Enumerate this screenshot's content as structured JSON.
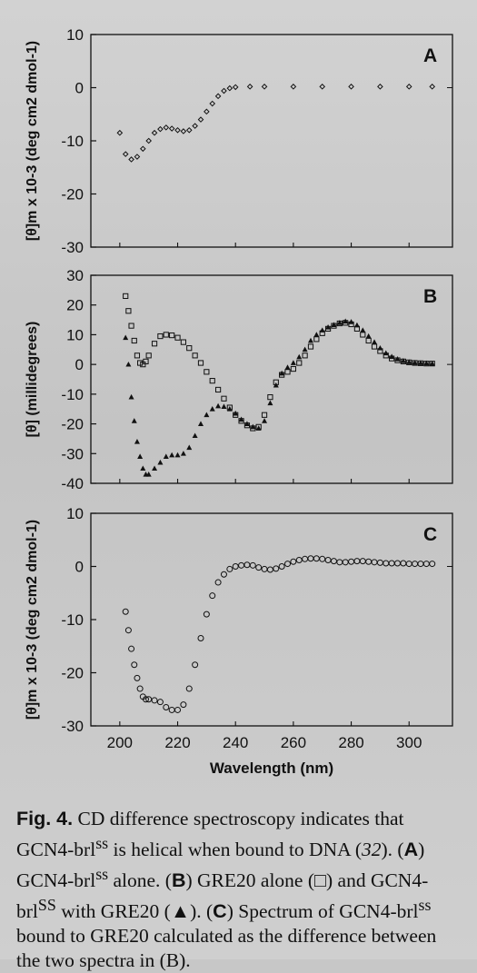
{
  "caption": {
    "fig_label": "Fig. 4.",
    "text": "CD difference spectroscopy indicates that GCN4-brl",
    "sup1": "ss",
    "t2": " is helical when bound to DNA (",
    "ref": "32",
    "t3": "). (",
    "A": "A",
    "t4": ") GCN4-brl",
    "sup2": "ss",
    "t5": " alone. (",
    "B": "B",
    "t6": ") GRE20 alone (□) and GCN4-brl",
    "sup3": "SS",
    "t7": " with GRE20 (▲). (",
    "C": "C",
    "t8": ") Spectrum of GCN4-brl",
    "sup4": "ss",
    "t9": " bound to GRE20 calculated as the difference between the two spectra in (B)."
  },
  "chart_data": [
    {
      "type": "scatter",
      "panel_label": "A",
      "ylabel": "[θ]m x 10-3 (deg cm2 dmol-1)",
      "ylim": [
        -30,
        10
      ],
      "xlim": [
        190,
        315
      ],
      "yticks": [
        "10",
        "0",
        "-10",
        "-20",
        "-30"
      ],
      "series": [
        {
          "marker": "diamond-open",
          "x": [
            200,
            202,
            204,
            206,
            208,
            210,
            212,
            214,
            216,
            218,
            220,
            222,
            224,
            226,
            228,
            230,
            232,
            234,
            236,
            238,
            240,
            245,
            250,
            260,
            270,
            280,
            290,
            300,
            308
          ],
          "y": [
            -8.5,
            -12.5,
            -13.5,
            -13,
            -11.5,
            -10,
            -8.5,
            -7.8,
            -7.5,
            -7.7,
            -8,
            -8.2,
            -8,
            -7.2,
            -6,
            -4.5,
            -3,
            -1.6,
            -0.6,
            -0.1,
            0.1,
            0.2,
            0.2,
            0.2,
            0.2,
            0.2,
            0.2,
            0.2,
            0.2
          ]
        }
      ]
    },
    {
      "type": "scatter",
      "panel_label": "B",
      "ylabel": "[θ] (millidegrees)",
      "ylim": [
        -40,
        30
      ],
      "xlim": [
        190,
        315
      ],
      "yticks": [
        "30",
        "20",
        "10",
        "0",
        "-10",
        "-20",
        "-30",
        "-40"
      ],
      "series": [
        {
          "marker": "square-open",
          "x": [
            202,
            203,
            204,
            205,
            206,
            207,
            208,
            209,
            210,
            212,
            214,
            216,
            218,
            220,
            222,
            224,
            226,
            228,
            230,
            232,
            234,
            236,
            238,
            240,
            242,
            244,
            246,
            248,
            250,
            252,
            254,
            256,
            258,
            260,
            262,
            264,
            266,
            268,
            270,
            272,
            274,
            276,
            278,
            280,
            282,
            284,
            286,
            288,
            290,
            292,
            294,
            296,
            298,
            300,
            302,
            304,
            306,
            308
          ],
          "y": [
            23,
            18,
            13,
            8,
            3,
            0.5,
            0,
            1,
            3,
            7,
            9.5,
            10,
            9.8,
            9,
            7.5,
            5.5,
            3,
            0.5,
            -2.5,
            -5.5,
            -8.5,
            -11.5,
            -14.5,
            -17,
            -19,
            -20.5,
            -21.5,
            -21,
            -17,
            -11,
            -6,
            -3.5,
            -2.5,
            -1.5,
            0.5,
            3,
            6,
            8.5,
            10.5,
            12,
            13,
            13.8,
            14,
            13.5,
            12,
            10,
            8,
            6,
            4.5,
            3,
            2,
            1.4,
            1,
            0.7,
            0.5,
            0.4,
            0.3,
            0.3
          ]
        },
        {
          "marker": "triangle-filled",
          "x": [
            202,
            203,
            204,
            205,
            206,
            207,
            208,
            209,
            210,
            212,
            214,
            216,
            218,
            220,
            222,
            224,
            226,
            228,
            230,
            232,
            234,
            236,
            238,
            240,
            242,
            244,
            246,
            248,
            250,
            252,
            254,
            256,
            258,
            260,
            262,
            264,
            266,
            268,
            270,
            272,
            274,
            276,
            278,
            280,
            282,
            284,
            286,
            288,
            290,
            292,
            294,
            296,
            298,
            300,
            302,
            304,
            306,
            308
          ],
          "y": [
            9,
            0,
            -11,
            -19,
            -26,
            -31,
            -35,
            -37,
            -37,
            -35,
            -33,
            -31,
            -30.5,
            -30.5,
            -30,
            -28,
            -24,
            -20,
            -17,
            -15,
            -14,
            -14.2,
            -15,
            -16.5,
            -18.5,
            -20,
            -21,
            -21.5,
            -19,
            -13,
            -7,
            -3,
            -1,
            0.5,
            2.5,
            5,
            8,
            10,
            11.5,
            12.5,
            13.3,
            14,
            14.5,
            14.3,
            13.2,
            11.5,
            9.5,
            7.5,
            5.5,
            3.8,
            2.6,
            1.8,
            1.2,
            0.8,
            0.6,
            0.5,
            0.4,
            0.3
          ]
        }
      ]
    },
    {
      "type": "scatter",
      "panel_label": "C",
      "xlabel": "Wavelength (nm)",
      "ylabel": "[θ]m x 10-3 (deg cm2 dmol-1)",
      "ylim": [
        -30,
        10
      ],
      "xlim": [
        190,
        315
      ],
      "yticks": [
        "10",
        "0",
        "-10",
        "-20",
        "-30"
      ],
      "xticks": [
        "200",
        "220",
        "240",
        "260",
        "280",
        "300"
      ],
      "series": [
        {
          "marker": "circle-open",
          "x": [
            202,
            203,
            204,
            205,
            206,
            207,
            208,
            209,
            210,
            212,
            214,
            216,
            218,
            220,
            222,
            224,
            226,
            228,
            230,
            232,
            234,
            236,
            238,
            240,
            242,
            244,
            246,
            248,
            250,
            252,
            254,
            256,
            258,
            260,
            262,
            264,
            266,
            268,
            270,
            272,
            274,
            276,
            278,
            280,
            282,
            284,
            286,
            288,
            290,
            292,
            294,
            296,
            298,
            300,
            302,
            304,
            306,
            308
          ],
          "y": [
            -8.5,
            -12,
            -15.5,
            -18.5,
            -21,
            -23,
            -24.5,
            -25,
            -25,
            -25.2,
            -25.5,
            -26.5,
            -27,
            -27,
            -26,
            -23,
            -18.5,
            -13.5,
            -9,
            -5.5,
            -3,
            -1.5,
            -0.5,
            0,
            0.2,
            0.3,
            0.2,
            -0.2,
            -0.5,
            -0.6,
            -0.4,
            0,
            0.5,
            0.9,
            1.2,
            1.4,
            1.5,
            1.5,
            1.4,
            1.2,
            1,
            0.8,
            0.8,
            0.9,
            1,
            1,
            0.9,
            0.8,
            0.7,
            0.6,
            0.6,
            0.6,
            0.6,
            0.5,
            0.5,
            0.5,
            0.5,
            0.5
          ]
        }
      ]
    }
  ]
}
